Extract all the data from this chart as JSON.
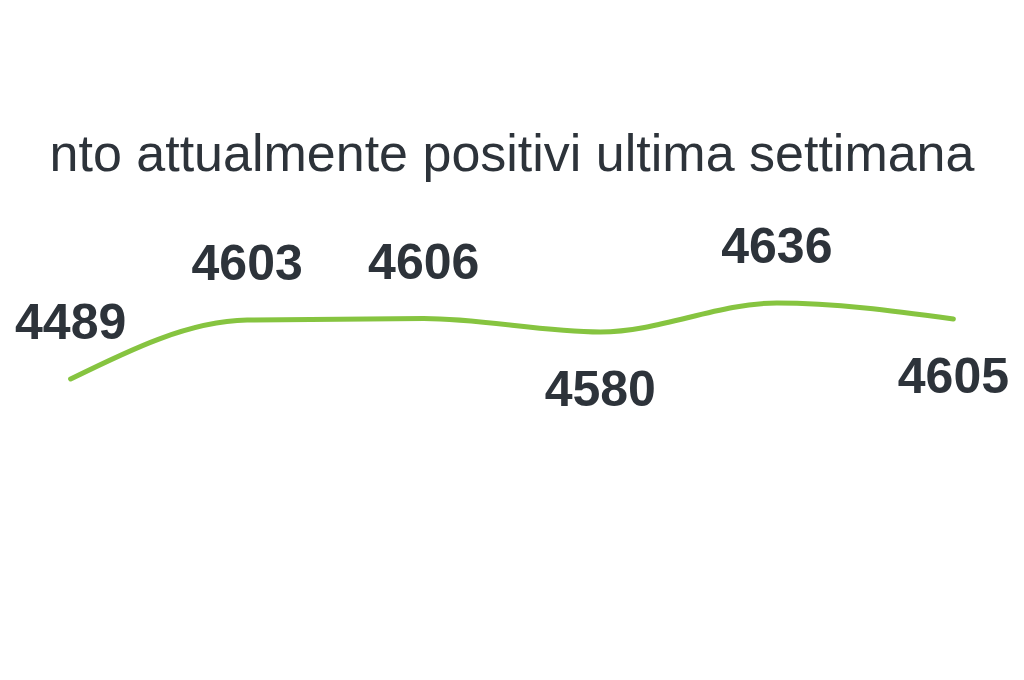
{
  "chart_data": {
    "type": "line",
    "title": "nto attualmente positivi ultima settimana",
    "categories": [
      null,
      null,
      null,
      null,
      null,
      null
    ],
    "values": [
      4489,
      4603,
      4606,
      4580,
      4636,
      4605
    ],
    "color": "#86c440",
    "data_labels": true
  }
}
